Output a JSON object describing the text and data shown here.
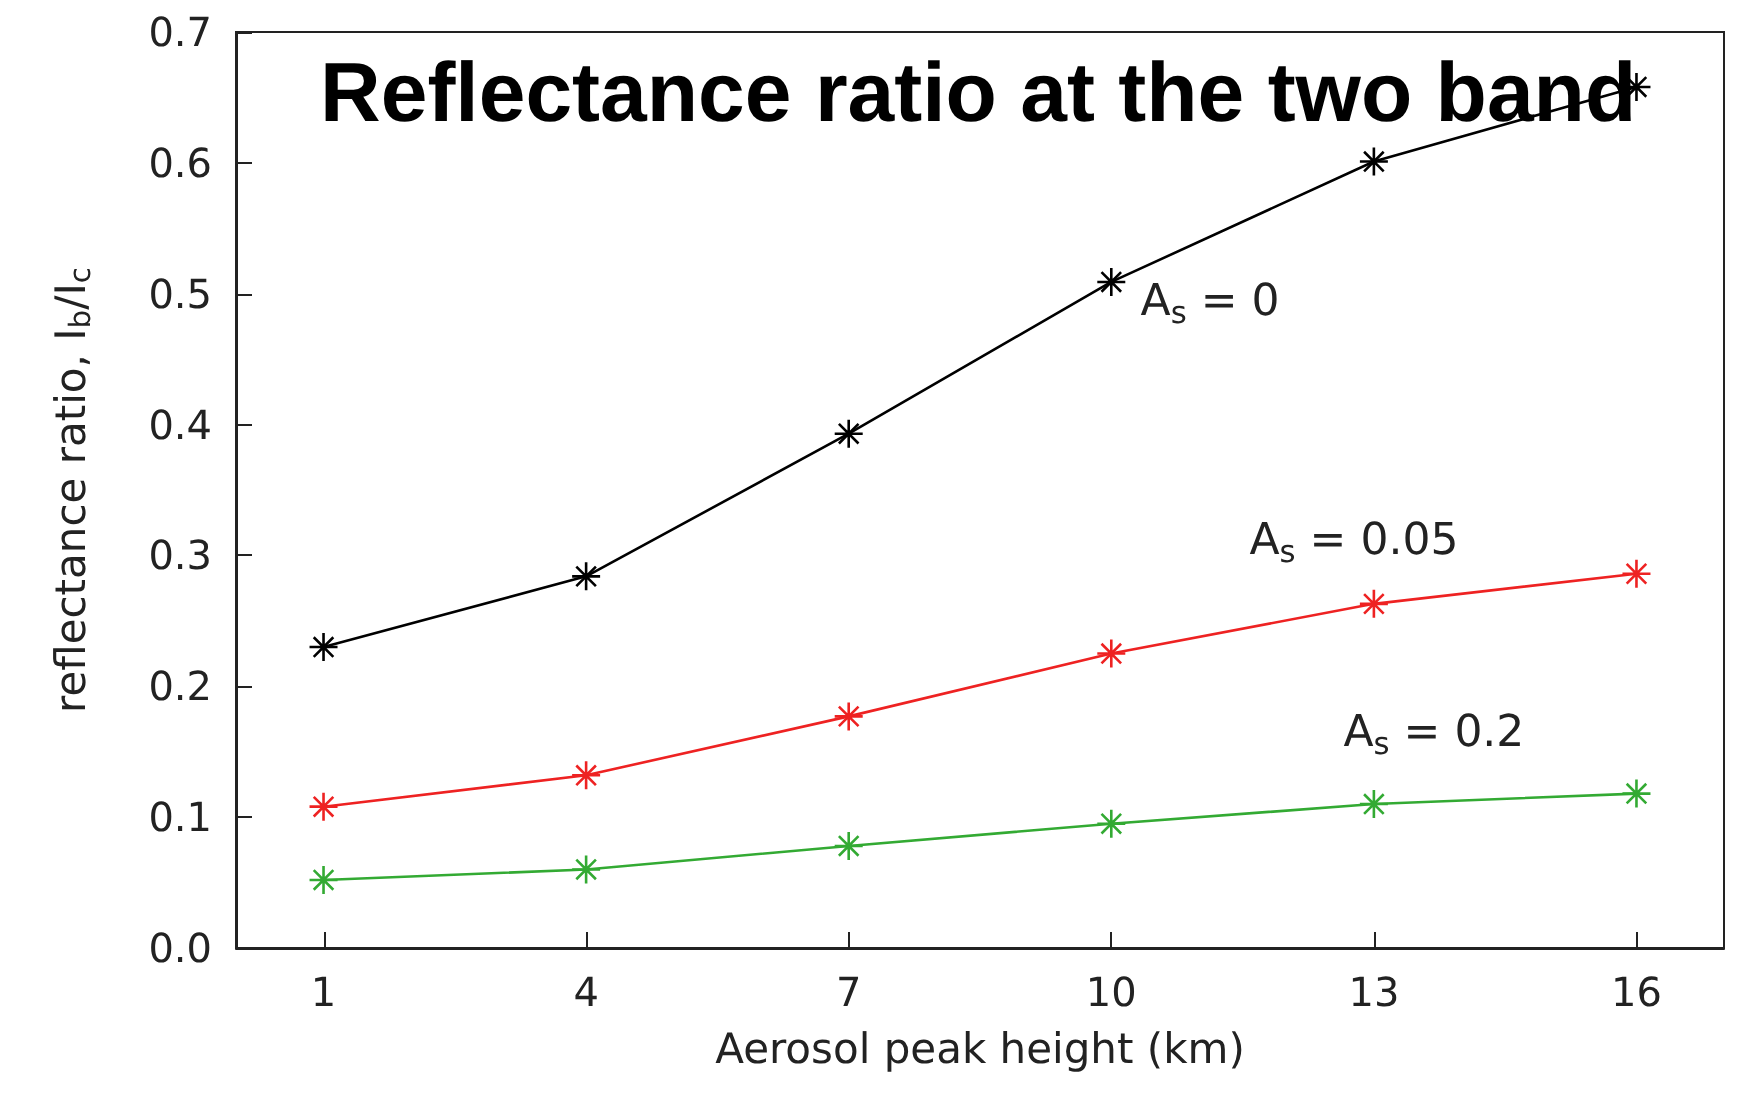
{
  "chart_data": {
    "type": "line",
    "title": "Reflectance ratio at the two band",
    "xlabel": "Aerosol peak height (km)",
    "ylabel": "reflectance ratio, I$_{b}$/I$_{c}$",
    "x": [
      1,
      4,
      7,
      10,
      13,
      16
    ],
    "series": [
      {
        "name": "A$_{s}$ = 0",
        "color": "#000000",
        "values": [
          0.23,
          0.284,
          0.393,
          0.509,
          0.601,
          0.658
        ]
      },
      {
        "name": "A$_{s}$ = 0.05",
        "color": "#ee2222",
        "values": [
          0.108,
          0.132,
          0.177,
          0.225,
          0.263,
          0.286
        ]
      },
      {
        "name": "A$_{s}$ = 0.2",
        "color": "#33aa33",
        "values": [
          0.052,
          0.06,
          0.078,
          0.095,
          0.11,
          0.118
        ]
      }
    ],
    "xlim": [
      0,
      17
    ],
    "xticks": [
      1,
      4,
      7,
      10,
      13,
      16
    ],
    "ylim": [
      0,
      0.7
    ],
    "yticks": [
      {
        "value": 0,
        "label": "0.0"
      },
      0.1,
      0.2,
      0.3,
      0.4,
      0.5,
      0.6,
      0.7
    ],
    "grid": false,
    "marker": "cross",
    "line_style": "solid"
  }
}
